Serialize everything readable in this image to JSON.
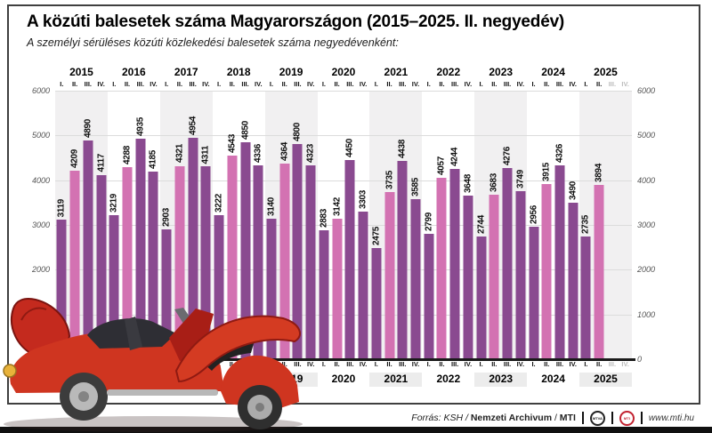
{
  "header": {
    "title": "A közúti balesetek száma Magyarországon (2015–2025. II. negyedév)",
    "subtitle": "A személyi sérüléses közúti közlekedési balesetek száma negyedévenként:"
  },
  "chart_data": {
    "type": "bar",
    "title": "A közúti balesetek száma Magyarországon (2015–2025. II. negyedév)",
    "xlabel": "",
    "ylabel": "",
    "ylim": [
      0,
      6000
    ],
    "yticks": [
      0,
      1000,
      2000,
      3000,
      4000,
      5000,
      6000
    ],
    "grid": true,
    "axis_labels_on_both_sides": true,
    "quarter_labels": [
      "I.",
      "II.",
      "III.",
      "IV."
    ],
    "highlighted_quarter": "II.",
    "years": [
      {
        "year": "2015",
        "values": [
          3119,
          4209,
          4890,
          4117
        ]
      },
      {
        "year": "2016",
        "values": [
          3219,
          4288,
          4935,
          4185
        ]
      },
      {
        "year": "2017",
        "values": [
          2903,
          4321,
          4954,
          4311
        ]
      },
      {
        "year": "2018",
        "values": [
          3222,
          4543,
          4850,
          4336
        ]
      },
      {
        "year": "2019",
        "values": [
          3140,
          4364,
          4800,
          4323
        ]
      },
      {
        "year": "2020",
        "values": [
          2883,
          3142,
          4450,
          3303
        ]
      },
      {
        "year": "2021",
        "values": [
          2475,
          3735,
          4438,
          3585
        ]
      },
      {
        "year": "2022",
        "values": [
          2799,
          4057,
          4244,
          3648
        ]
      },
      {
        "year": "2023",
        "values": [
          2744,
          3683,
          4276,
          3749
        ]
      },
      {
        "year": "2024",
        "values": [
          2956,
          3915,
          4326,
          3490
        ]
      },
      {
        "year": "2025",
        "values": [
          2735,
          3894
        ]
      }
    ]
  },
  "colors": {
    "bar_dark": "#8a4a90",
    "bar_highlight": "#d372b2",
    "band_alt": "#f1f0f1",
    "axis_text": "#555555",
    "car_red": "#cf3520"
  },
  "footer": {
    "source": {
      "prefix": "Forrás: KSH /",
      "archive": "Nemzeti Archivum",
      "separator": "/",
      "agency": "MTI"
    },
    "logos": [
      "MTVA",
      "MTI"
    ],
    "website": "www.mti.hu"
  }
}
